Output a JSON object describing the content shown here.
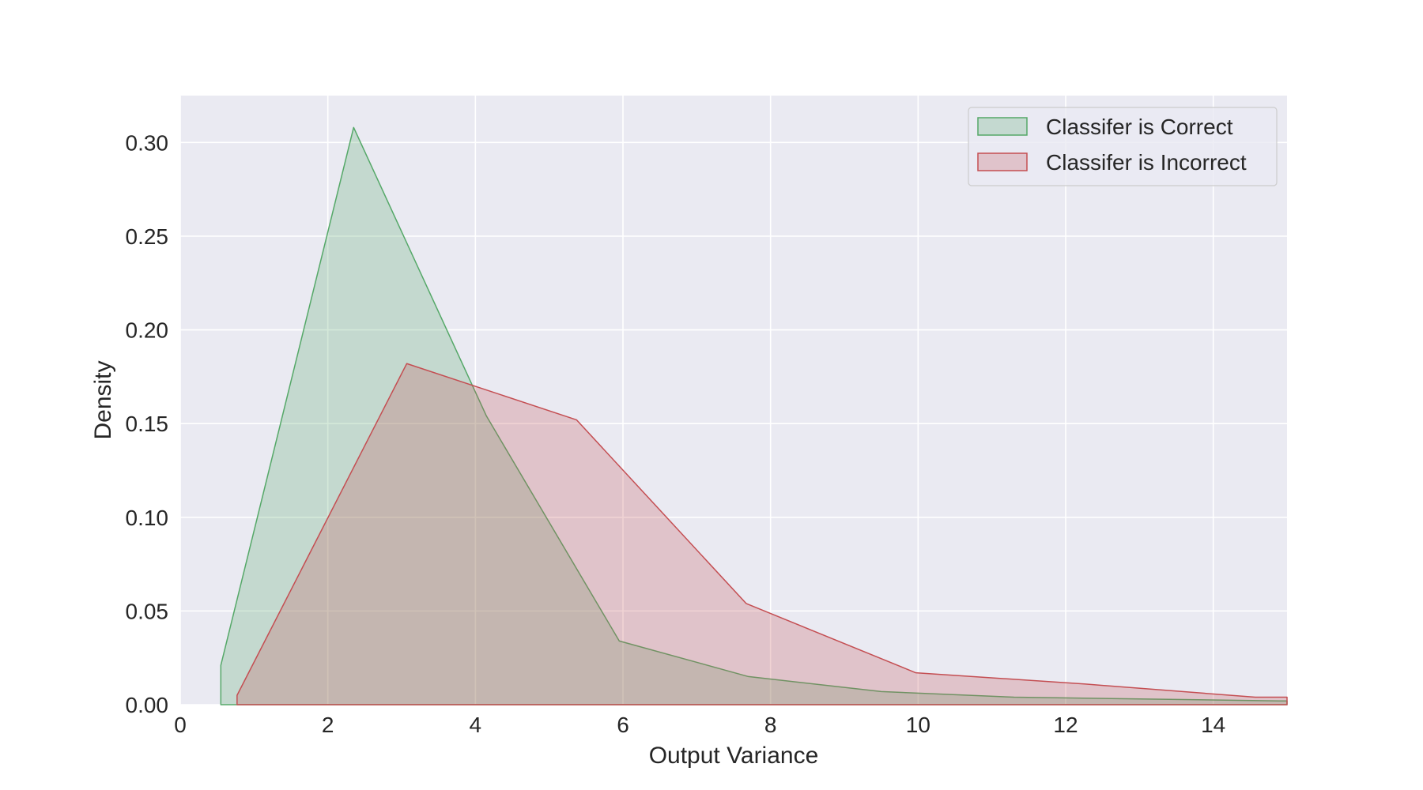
{
  "chart_data": {
    "type": "area",
    "title": "",
    "xlabel": "Output Variance",
    "ylabel": "Density",
    "xlim": [
      0,
      15
    ],
    "ylim": [
      0,
      0.325
    ],
    "xticks": [
      0,
      2,
      4,
      6,
      8,
      10,
      12,
      14
    ],
    "yticks": [
      0.0,
      0.05,
      0.1,
      0.15,
      0.2,
      0.25,
      0.3
    ],
    "xtick_labels": [
      "0",
      "2",
      "4",
      "6",
      "8",
      "10",
      "12",
      "14"
    ],
    "ytick_labels": [
      "0.00",
      "0.05",
      "0.10",
      "0.15",
      "0.20",
      "0.25",
      "0.30"
    ],
    "grid": true,
    "legend_position": "top-right",
    "series": [
      {
        "name": "Classifer is Correct",
        "color": "#55a868",
        "x": [
          0.55,
          0.55,
          2.35,
          4.15,
          5.95,
          7.7,
          9.5,
          11.3,
          13.1,
          14.9,
          15.0
        ],
        "y": [
          0,
          0.021,
          0.308,
          0.154,
          0.034,
          0.015,
          0.007,
          0.004,
          0.003,
          0.002,
          0.002
        ]
      },
      {
        "name": "Classifer is Incorrect",
        "color": "#c44e52",
        "x": [
          0.77,
          0.77,
          3.07,
          5.37,
          7.67,
          9.97,
          12.27,
          14.57,
          15.0
        ],
        "y": [
          0,
          0.005,
          0.182,
          0.152,
          0.054,
          0.017,
          0.011,
          0.004,
          0.004
        ]
      }
    ]
  }
}
